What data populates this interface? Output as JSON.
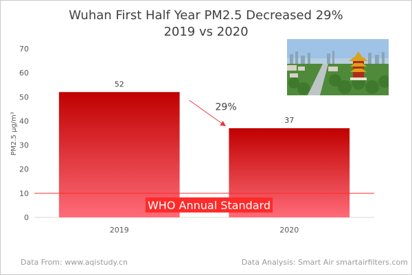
{
  "chart_data": {
    "type": "bar",
    "title": "Wuhan First Half Year PM2.5 Decreased 29%",
    "subtitle": "2019 vs 2020",
    "categories": [
      "2019",
      "2020"
    ],
    "values": [
      52,
      37
    ],
    "ylabel": "PM2.5  μg/m³",
    "xlabel": "",
    "ylim": [
      0,
      70
    ],
    "yticks": [
      0,
      10,
      20,
      30,
      40,
      50,
      60,
      70
    ],
    "grid": false,
    "reference_line": {
      "value": 10,
      "label": "WHO Annual Standard",
      "color": "#ff2a2a"
    },
    "annotation": {
      "text": "29%",
      "from": "2019",
      "to": "2020"
    },
    "colors": {
      "bar_top": "#c00000",
      "bar_bottom": "#ff6b78",
      "axis": "#d9d9d9",
      "tick_text": "#595959",
      "arrow": "#e8363b"
    }
  },
  "footer": {
    "source": "Data From: www.aqistudy.cn",
    "analysis": "Data Analysis:  Smart Air smartairfilters.com"
  },
  "photo": {
    "subject": "wuhan-skyline-yellow-crane-tower"
  }
}
